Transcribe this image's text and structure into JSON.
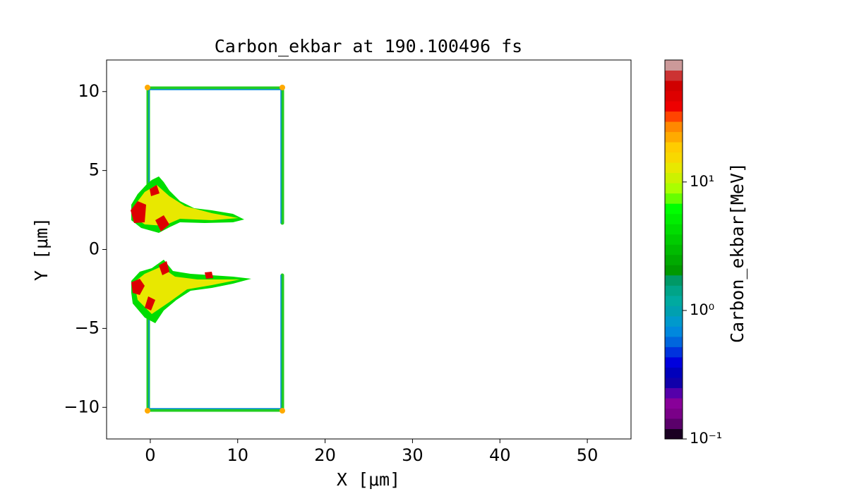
{
  "chart_data": {
    "type": "heatmap",
    "title": "Carbon_ekbar at 190.100496 fs",
    "x_label": "X [μm]",
    "y_label": "Y [μm]",
    "xlim": [
      -5,
      55
    ],
    "xticks": [
      0,
      10,
      20,
      30,
      40,
      50
    ],
    "ylim": [
      -12,
      12
    ],
    "yticks": [
      {
        "value": -10,
        "label": "−10"
      },
      {
        "value": -5,
        "label": "−5"
      },
      0,
      5,
      10
    ],
    "colorbar": {
      "label": "Carbon_ekbar[MeV]",
      "log_scale": true,
      "lim": [
        0.1,
        89
      ],
      "ticks": [
        {
          "value": 0.1,
          "label": "10⁻¹"
        },
        {
          "value": 1,
          "label": "10⁰"
        },
        {
          "value": 10,
          "label": "10¹"
        }
      ],
      "colors": [
        "#1a0022",
        "#5a006a",
        "#7a0088",
        "#880099",
        "#5500aa",
        "#1100aa",
        "#0000bb",
        "#0000dd",
        "#0033dd",
        "#0066dd",
        "#0088dd",
        "#0099cc",
        "#00a0b0",
        "#00aaa0",
        "#00a488",
        "#009966",
        "#009900",
        "#00aa00",
        "#00bb00",
        "#00cc00",
        "#00dd00",
        "#00ee00",
        "#00ff00",
        "#66ff00",
        "#aaff00",
        "#ccf200",
        "#e8e800",
        "#f8d800",
        "#ffcc00",
        "#ffaa00",
        "#ff8800",
        "#ff4400",
        "#ee0000",
        "#dd0000",
        "#d00000",
        "#cc3333",
        "#cc9999"
      ]
    }
  }
}
